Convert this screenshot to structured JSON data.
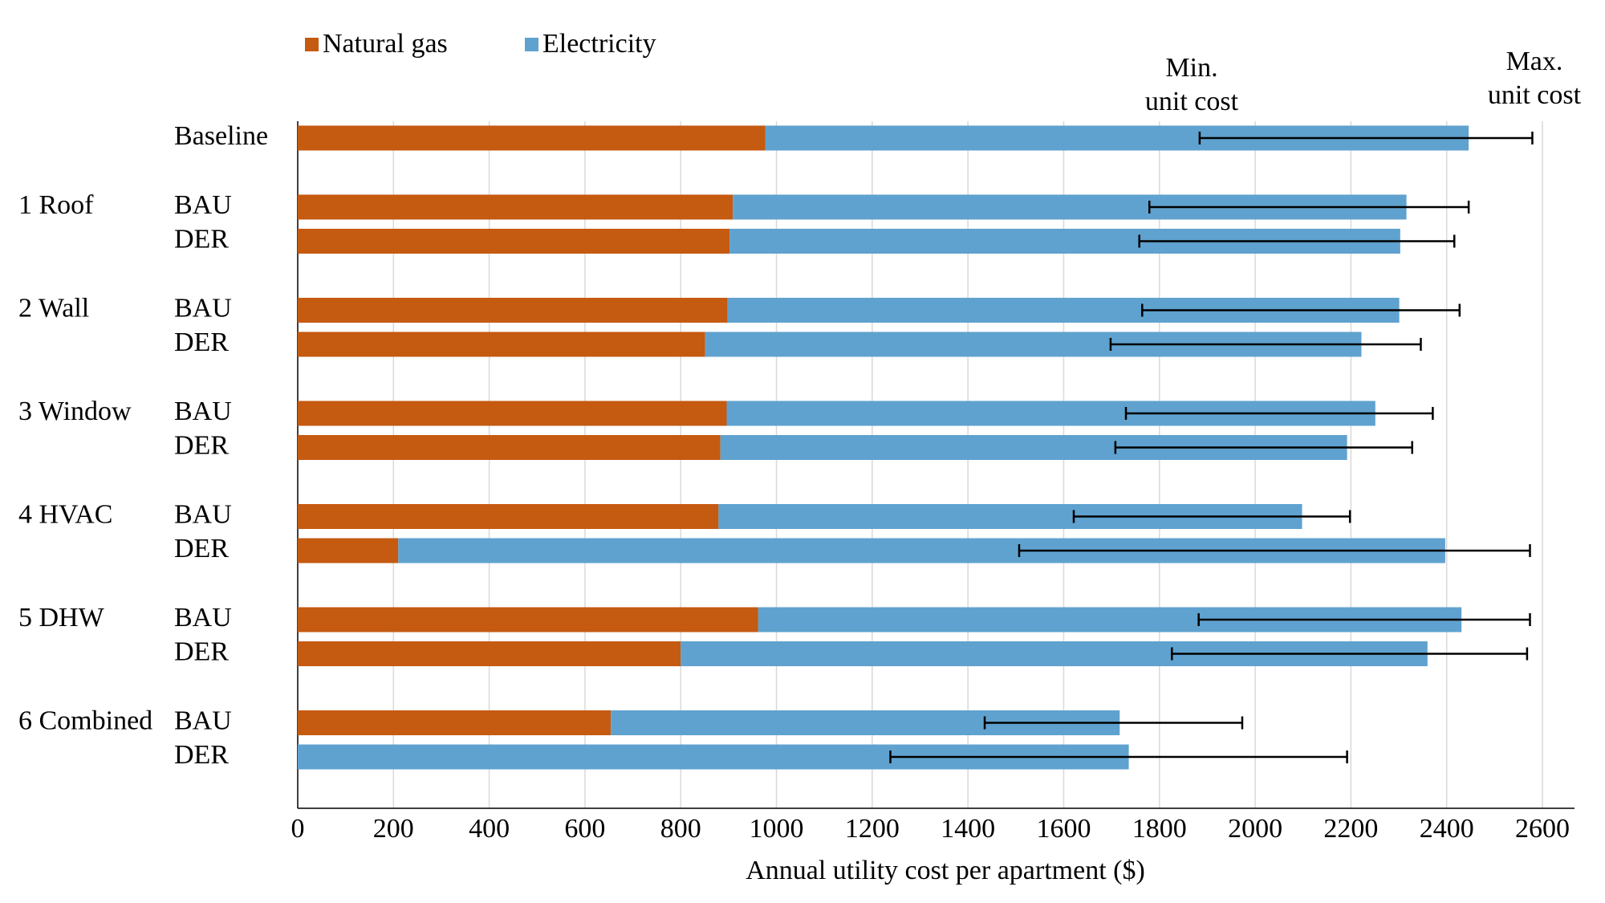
{
  "chart_data": {
    "type": "stacked-barh",
    "xlabel": "Annual utility cost per apartment ($)",
    "categories": [
      "Baseline",
      "BAU",
      "DER",
      "BAU",
      "DER",
      "BAU",
      "DER",
      "BAU",
      "DER",
      "BAU",
      "DER",
      "BAU",
      "DER"
    ],
    "group_labels": [
      null,
      "1 Roof",
      null,
      "2 Wall",
      null,
      "3 Window",
      null,
      "4 HVAC",
      null,
      "5 DHW",
      null,
      "6 Combined",
      null
    ],
    "series": [
      {
        "name": "Natural gas",
        "color": "#c55a11",
        "values": [
          977,
          909,
          902,
          898,
          851,
          896,
          883,
          879,
          210,
          962,
          800,
          654,
          0
        ]
      },
      {
        "name": "Electricity",
        "color": "#5fa2cf",
        "values": [
          1469,
          1407,
          1401,
          1403,
          1371,
          1355,
          1309,
          1219,
          2187,
          1469,
          1560,
          1063,
          1736
        ]
      }
    ],
    "min_cost": [
      1884,
      1779,
      1758,
      1764,
      1698,
      1730,
      1708,
      1621,
      1507,
      1882,
      1826,
      1435,
      1238
    ],
    "max_cost": [
      2579,
      2446,
      2416,
      2427,
      2346,
      2371,
      2328,
      2198,
      2574,
      2574,
      2568,
      1973,
      2192
    ],
    "annotations": [
      [
        "Min.",
        "unit cost"
      ],
      [
        "Max.",
        "unit cost"
      ]
    ],
    "xlim": [
      0,
      2600
    ],
    "xticks": [
      0,
      200,
      400,
      600,
      800,
      1000,
      1200,
      1400,
      1600,
      1800,
      2000,
      2200,
      2400,
      2600
    ],
    "grid": true,
    "legend": "top"
  }
}
